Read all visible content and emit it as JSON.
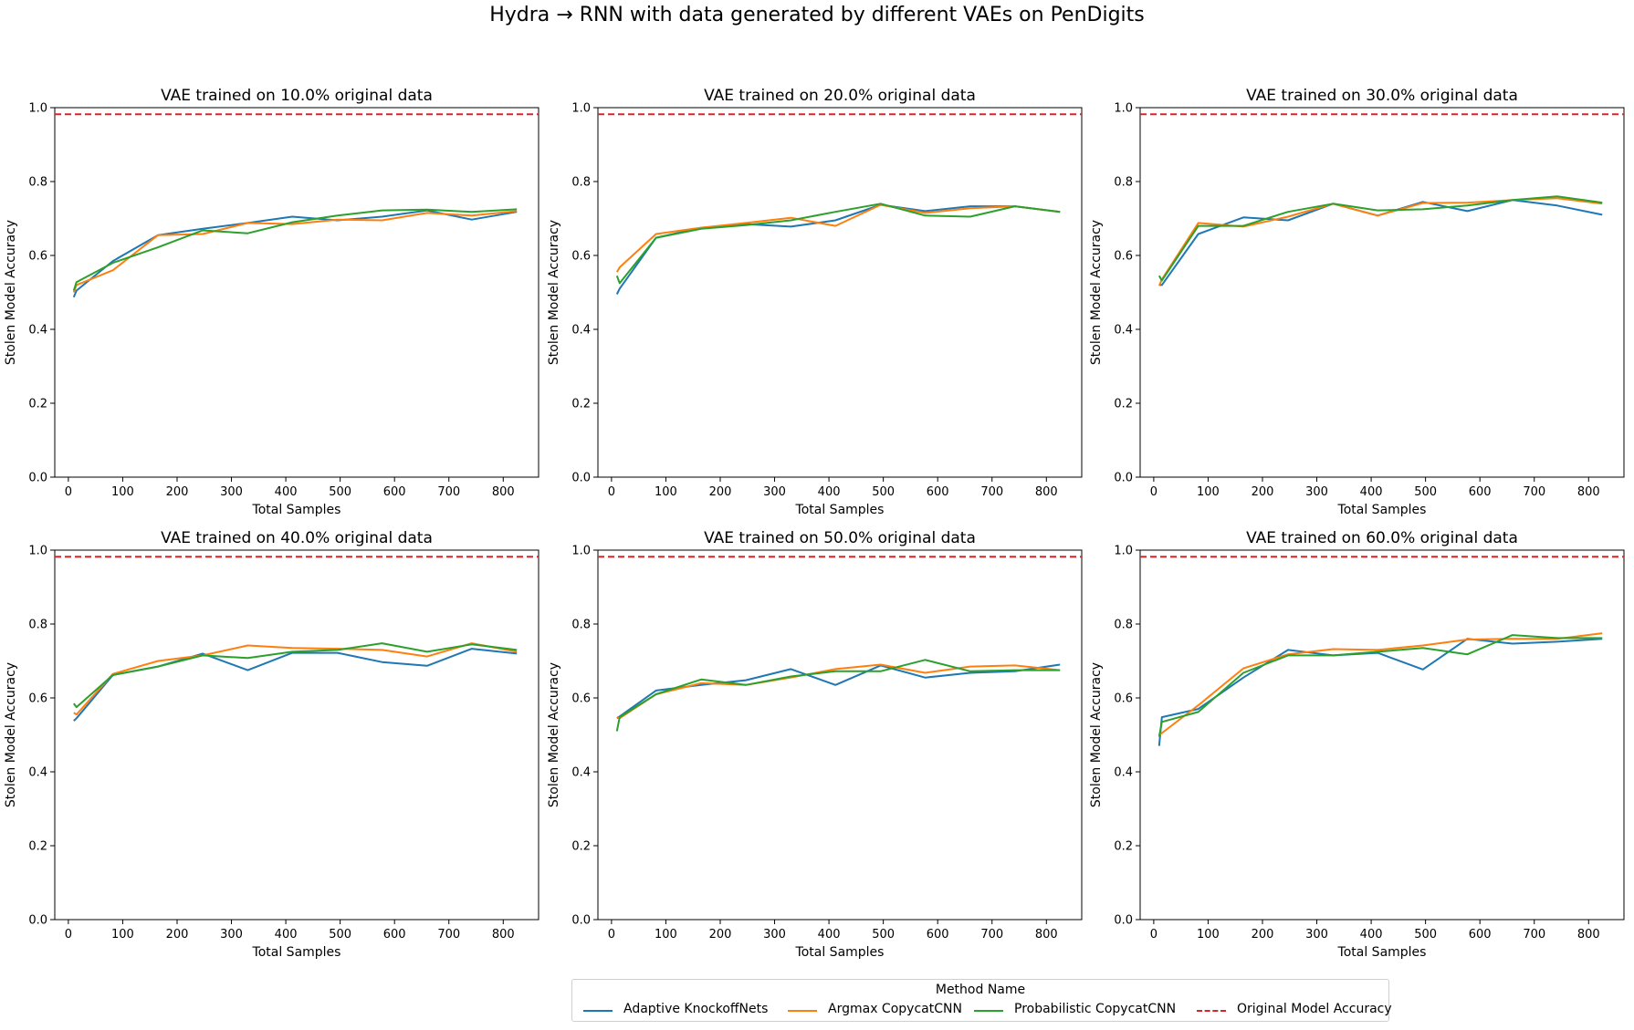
{
  "suptitle": "Hydra → RNN with data generated by different VAEs on PenDigits",
  "legend": {
    "title": "Method Name",
    "entries": [
      {
        "label": "Adaptive KnockoffNets",
        "color": "#1f77b4",
        "style": "solid"
      },
      {
        "label": "Argmax CopycatCNN",
        "color": "#ff7f0e",
        "style": "solid"
      },
      {
        "label": "Probabilistic CopycatCNN",
        "color": "#2ca02c",
        "style": "solid"
      },
      {
        "label": "Original Model Accuracy",
        "color": "#d62728",
        "style": "dashed"
      }
    ]
  },
  "chart_data": [
    {
      "type": "line",
      "title": "VAE trained on 10.0% original data",
      "xlabel": "Total Samples",
      "ylabel": "Stolen Model Accuracy",
      "xlim": [
        -25,
        865
      ],
      "ylim": [
        0.0,
        1.0
      ],
      "xticks": [
        0,
        100,
        200,
        300,
        400,
        500,
        600,
        700,
        800
      ],
      "yticks": [
        0.0,
        0.2,
        0.4,
        0.6,
        0.8,
        1.0
      ],
      "reference_line": {
        "name": "Original Model Accuracy",
        "y": 0.982
      },
      "series": [
        {
          "name": "Adaptive KnockoffNets",
          "x": [
            10,
            15,
            82,
            165,
            247,
            330,
            412,
            495,
            577,
            660,
            742,
            825
          ],
          "y": [
            0.487,
            0.505,
            0.585,
            0.655,
            0.672,
            0.688,
            0.705,
            0.695,
            0.705,
            0.722,
            0.697,
            0.718
          ]
        },
        {
          "name": "Argmax CopycatCNN",
          "x": [
            10,
            15,
            82,
            165,
            247,
            330,
            412,
            495,
            577,
            660,
            742,
            825
          ],
          "y": [
            0.5,
            0.52,
            0.56,
            0.655,
            0.658,
            0.688,
            0.685,
            0.697,
            0.695,
            0.715,
            0.708,
            0.72
          ]
        },
        {
          "name": "Probabilistic CopycatCNN",
          "x": [
            10,
            15,
            82,
            165,
            247,
            330,
            412,
            495,
            577,
            660,
            742,
            825
          ],
          "y": [
            0.505,
            0.528,
            0.58,
            0.622,
            0.668,
            0.66,
            0.69,
            0.708,
            0.722,
            0.724,
            0.718,
            0.725
          ]
        }
      ]
    },
    {
      "type": "line",
      "title": "VAE trained on 20.0% original data",
      "xlabel": "Total Samples",
      "ylabel": "Stolen Model Accuracy",
      "xlim": [
        -25,
        865
      ],
      "ylim": [
        0.0,
        1.0
      ],
      "xticks": [
        0,
        100,
        200,
        300,
        400,
        500,
        600,
        700,
        800
      ],
      "yticks": [
        0.0,
        0.2,
        0.4,
        0.6,
        0.8,
        1.0
      ],
      "reference_line": {
        "name": "Original Model Accuracy",
        "y": 0.982
      },
      "series": [
        {
          "name": "Adaptive KnockoffNets",
          "x": [
            10,
            15,
            82,
            165,
            247,
            330,
            412,
            495,
            577,
            660,
            742,
            825
          ],
          "y": [
            0.495,
            0.51,
            0.648,
            0.675,
            0.685,
            0.678,
            0.695,
            0.737,
            0.72,
            0.733,
            0.733,
            0.718
          ]
        },
        {
          "name": "Argmax CopycatCNN",
          "x": [
            10,
            15,
            82,
            165,
            247,
            330,
            412,
            495,
            577,
            660,
            742,
            825
          ],
          "y": [
            0.555,
            0.568,
            0.658,
            0.675,
            0.688,
            0.702,
            0.68,
            0.737,
            0.715,
            0.728,
            0.733,
            0.718
          ]
        },
        {
          "name": "Probabilistic CopycatCNN",
          "x": [
            10,
            15,
            82,
            165,
            247,
            330,
            412,
            495,
            577,
            660,
            742,
            825
          ],
          "y": [
            0.545,
            0.525,
            0.648,
            0.672,
            0.682,
            0.695,
            0.718,
            0.74,
            0.708,
            0.705,
            0.733,
            0.718
          ]
        }
      ]
    },
    {
      "type": "line",
      "title": "VAE trained on 30.0% original data",
      "xlabel": "Total Samples",
      "ylabel": "Stolen Model Accuracy",
      "xlim": [
        -25,
        865
      ],
      "ylim": [
        0.0,
        1.0
      ],
      "xticks": [
        0,
        100,
        200,
        300,
        400,
        500,
        600,
        700,
        800
      ],
      "yticks": [
        0.0,
        0.2,
        0.4,
        0.6,
        0.8,
        1.0
      ],
      "reference_line": {
        "name": "Original Model Accuracy",
        "y": 0.982
      },
      "series": [
        {
          "name": "Adaptive KnockoffNets",
          "x": [
            10,
            15,
            82,
            165,
            247,
            330,
            412,
            495,
            577,
            660,
            742,
            825
          ],
          "y": [
            0.52,
            0.52,
            0.658,
            0.703,
            0.695,
            0.74,
            0.708,
            0.745,
            0.72,
            0.75,
            0.735,
            0.71
          ]
        },
        {
          "name": "Argmax CopycatCNN",
          "x": [
            10,
            15,
            82,
            165,
            247,
            330,
            412,
            495,
            577,
            660,
            742,
            825
          ],
          "y": [
            0.518,
            0.535,
            0.688,
            0.678,
            0.705,
            0.74,
            0.708,
            0.742,
            0.743,
            0.75,
            0.755,
            0.74
          ]
        },
        {
          "name": "Probabilistic CopycatCNN",
          "x": [
            10,
            15,
            82,
            165,
            247,
            330,
            412,
            495,
            577,
            660,
            742,
            825
          ],
          "y": [
            0.545,
            0.532,
            0.68,
            0.68,
            0.718,
            0.74,
            0.722,
            0.725,
            0.735,
            0.75,
            0.76,
            0.743
          ]
        }
      ]
    },
    {
      "type": "line",
      "title": "VAE trained on 40.0% original data",
      "xlabel": "Total Samples",
      "ylabel": "Stolen Model Accuracy",
      "xlim": [
        -25,
        865
      ],
      "ylim": [
        0.0,
        1.0
      ],
      "xticks": [
        0,
        100,
        200,
        300,
        400,
        500,
        600,
        700,
        800
      ],
      "yticks": [
        0.0,
        0.2,
        0.4,
        0.6,
        0.8,
        1.0
      ],
      "reference_line": {
        "name": "Original Model Accuracy",
        "y": 0.982
      },
      "series": [
        {
          "name": "Adaptive KnockoffNets",
          "x": [
            10,
            15,
            82,
            165,
            247,
            330,
            412,
            495,
            577,
            660,
            742,
            825
          ],
          "y": [
            0.538,
            0.545,
            0.662,
            0.685,
            0.72,
            0.675,
            0.722,
            0.722,
            0.697,
            0.687,
            0.733,
            0.72
          ]
        },
        {
          "name": "Argmax CopycatCNN",
          "x": [
            10,
            15,
            82,
            165,
            247,
            330,
            412,
            495,
            577,
            660,
            742,
            825
          ],
          "y": [
            0.56,
            0.555,
            0.665,
            0.7,
            0.715,
            0.742,
            0.735,
            0.733,
            0.73,
            0.712,
            0.748,
            0.725
          ]
        },
        {
          "name": "Probabilistic CopycatCNN",
          "x": [
            10,
            15,
            82,
            165,
            247,
            330,
            412,
            495,
            577,
            660,
            742,
            825
          ],
          "y": [
            0.585,
            0.575,
            0.662,
            0.685,
            0.715,
            0.708,
            0.725,
            0.73,
            0.748,
            0.725,
            0.745,
            0.73
          ]
        }
      ]
    },
    {
      "type": "line",
      "title": "VAE trained on 50.0% original data",
      "xlabel": "Total Samples",
      "ylabel": "Stolen Model Accuracy",
      "xlim": [
        -25,
        865
      ],
      "ylim": [
        0.0,
        1.0
      ],
      "xticks": [
        0,
        100,
        200,
        300,
        400,
        500,
        600,
        700,
        800
      ],
      "yticks": [
        0.0,
        0.2,
        0.4,
        0.6,
        0.8,
        1.0
      ],
      "reference_line": {
        "name": "Original Model Accuracy",
        "y": 0.982
      },
      "series": [
        {
          "name": "Adaptive KnockoffNets",
          "x": [
            10,
            15,
            82,
            165,
            247,
            330,
            412,
            495,
            577,
            660,
            742,
            825
          ],
          "y": [
            0.545,
            0.55,
            0.62,
            0.635,
            0.648,
            0.678,
            0.635,
            0.688,
            0.655,
            0.668,
            0.672,
            0.69
          ]
        },
        {
          "name": "Argmax CopycatCNN",
          "x": [
            10,
            15,
            82,
            165,
            247,
            330,
            412,
            495,
            577,
            660,
            742,
            825
          ],
          "y": [
            0.548,
            0.545,
            0.61,
            0.64,
            0.635,
            0.655,
            0.678,
            0.69,
            0.668,
            0.685,
            0.688,
            0.675
          ]
        },
        {
          "name": "Probabilistic CopycatCNN",
          "x": [
            10,
            15,
            82,
            165,
            247,
            330,
            412,
            495,
            577,
            660,
            742,
            825
          ],
          "y": [
            0.51,
            0.548,
            0.61,
            0.65,
            0.635,
            0.658,
            0.672,
            0.672,
            0.703,
            0.672,
            0.675,
            0.675
          ]
        }
      ]
    },
    {
      "type": "line",
      "title": "VAE trained on 60.0% original data",
      "xlabel": "Total Samples",
      "ylabel": "Stolen Model Accuracy",
      "xlim": [
        -25,
        865
      ],
      "ylim": [
        0.0,
        1.0
      ],
      "xticks": [
        0,
        100,
        200,
        300,
        400,
        500,
        600,
        700,
        800
      ],
      "yticks": [
        0.0,
        0.2,
        0.4,
        0.6,
        0.8,
        1.0
      ],
      "reference_line": {
        "name": "Original Model Accuracy",
        "y": 0.982
      },
      "series": [
        {
          "name": "Adaptive KnockoffNets",
          "x": [
            10,
            15,
            82,
            165,
            247,
            330,
            412,
            495,
            577,
            660,
            742,
            825
          ],
          "y": [
            0.47,
            0.548,
            0.57,
            0.655,
            0.73,
            0.715,
            0.722,
            0.677,
            0.76,
            0.747,
            0.752,
            0.76
          ]
        },
        {
          "name": "Argmax CopycatCNN",
          "x": [
            10,
            15,
            82,
            165,
            247,
            330,
            412,
            495,
            577,
            660,
            742,
            825
          ],
          "y": [
            0.5,
            0.505,
            0.58,
            0.68,
            0.718,
            0.732,
            0.73,
            0.742,
            0.758,
            0.76,
            0.76,
            0.775
          ]
        },
        {
          "name": "Probabilistic CopycatCNN",
          "x": [
            10,
            15,
            82,
            165,
            247,
            330,
            412,
            495,
            577,
            660,
            742,
            825
          ],
          "y": [
            0.495,
            0.535,
            0.562,
            0.668,
            0.715,
            0.715,
            0.725,
            0.735,
            0.718,
            0.77,
            0.762,
            0.762
          ]
        }
      ]
    }
  ]
}
